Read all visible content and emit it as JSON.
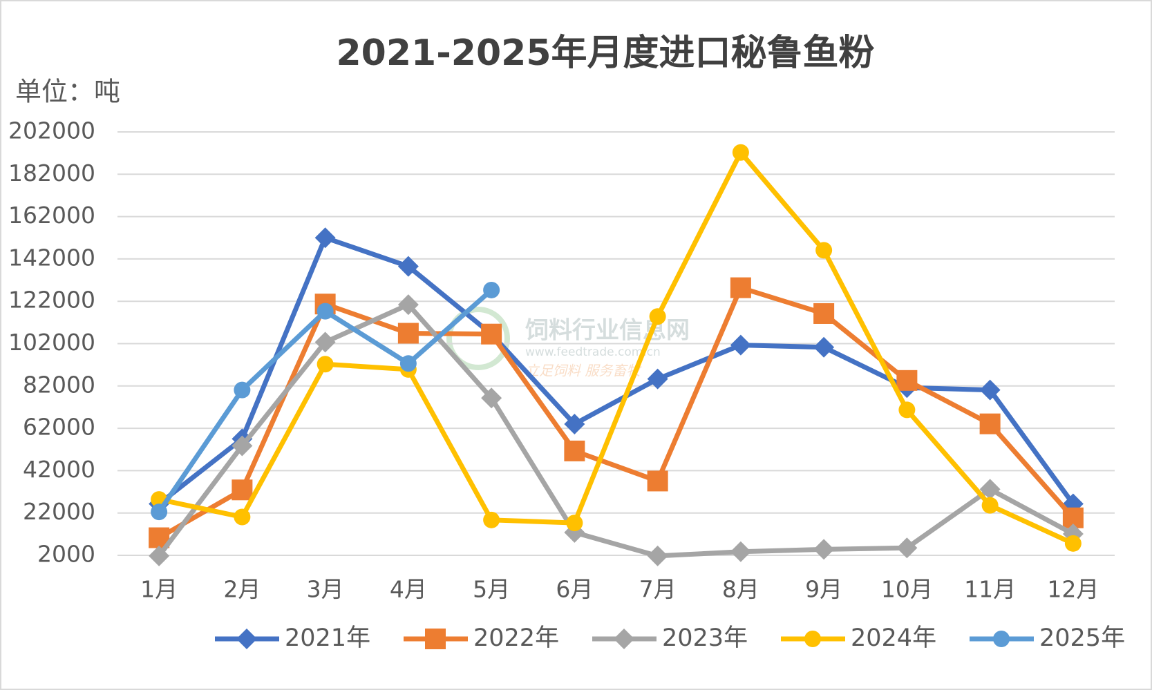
{
  "chart_data": {
    "type": "line",
    "title": "2021-2025年月度进口秘鲁鱼粉",
    "y_axis_label": "单位：吨",
    "watermark": {
      "name": "饲料行业信息网",
      "url": "www.feedtrade.com.cn",
      "slogan": "立足饲料  服务畜牧"
    },
    "categories": [
      "1月",
      "2月",
      "3月",
      "4月",
      "5月",
      "6月",
      "7月",
      "8月",
      "9月",
      "10月",
      "11月",
      "12月"
    ],
    "series": [
      {
        "name": "2021年",
        "color": "#4472c4",
        "marker": "diamond",
        "values": [
          26300,
          57000,
          152000,
          138500,
          106500,
          64000,
          85300,
          101300,
          100300,
          81200,
          80100,
          26300
        ]
      },
      {
        "name": "2022年",
        "color": "#ed7d31",
        "marker": "square",
        "values": [
          10300,
          32900,
          120700,
          106900,
          106500,
          51300,
          37100,
          128400,
          116200,
          84600,
          64100,
          19700
        ]
      },
      {
        "name": "2023年",
        "color": "#a5a5a5",
        "marker": "diamond",
        "values": [
          1700,
          53700,
          102700,
          120400,
          76300,
          12800,
          1700,
          3700,
          4800,
          5500,
          33200,
          12100
        ]
      },
      {
        "name": "2024年",
        "color": "#ffc000",
        "marker": "circle",
        "values": [
          28400,
          20100,
          92300,
          89800,
          18700,
          17300,
          114800,
          192300,
          146100,
          70700,
          25600,
          7600
        ]
      },
      {
        "name": "2025年",
        "color": "#5b9bd5",
        "marker": "circle",
        "values": [
          22500,
          80100,
          117300,
          92600,
          127300,
          null,
          null,
          null,
          null,
          null,
          null,
          null
        ]
      }
    ],
    "ylim": [
      2000,
      202000
    ],
    "yticks": [
      2000,
      22000,
      42000,
      62000,
      82000,
      102000,
      122000,
      142000,
      162000,
      182000,
      202000
    ],
    "grid": true,
    "legend": "bottom"
  }
}
